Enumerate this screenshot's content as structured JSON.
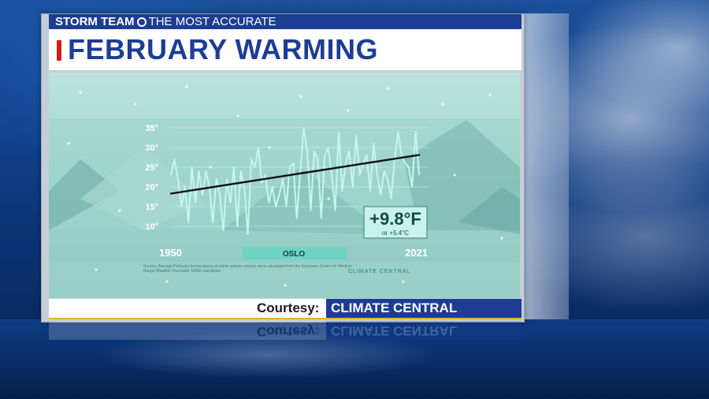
{
  "brand": {
    "station": "STORM TEAM",
    "tagline": "THE MOST ACCURATE"
  },
  "title": "FEBRUARY WARMING",
  "courtesy": {
    "label": "Courtesy:",
    "source": "CLIMATE CENTRAL"
  },
  "colors": {
    "brand_blue": "#1d3d93",
    "title_red": "#d21c1c",
    "accent_gold": "#e8b21f",
    "series_line": "#b9f2e6",
    "trend_line": "#111111",
    "chart_bg": "#8ec8c1"
  },
  "icons": {
    "station_logo": "channel-4-logo-icon",
    "climate_central_logo": "infinity-icon"
  },
  "chart_data": {
    "type": "line",
    "city": "OSLO",
    "start_label": "1950",
    "end_label": "2021",
    "yticks": [
      "35°",
      "30°",
      "25°",
      "20°",
      "15°",
      "10°"
    ],
    "ytick_values": [
      35,
      30,
      25,
      20,
      15,
      10
    ],
    "ylim": [
      7,
      37
    ],
    "xlim": [
      1950,
      2021
    ],
    "grid": true,
    "badge": {
      "main": "+9.8°F",
      "sub": "or +5.4°C"
    },
    "source_note": "Source: Average February temperatures at winter games venues were calculated from the European Centre for Medium Range Weather Forecasts' ERA5 reanalysis.",
    "logo_text": "CLIMATE CENTRAL",
    "series": [
      {
        "x": [
          1950,
          1951,
          1952,
          1953,
          1954,
          1955,
          1956,
          1957,
          1958,
          1959,
          1960,
          1961,
          1962,
          1963,
          1964,
          1965,
          1966,
          1967,
          1968,
          1969,
          1970,
          1971,
          1972,
          1973,
          1974,
          1975,
          1976,
          1977,
          1978,
          1979,
          1980,
          1981,
          1982,
          1983,
          1984,
          1985,
          1986,
          1987,
          1988,
          1989,
          1990,
          1991,
          1992,
          1993,
          1994,
          1995,
          1996,
          1997,
          1998,
          1999,
          2000,
          2001,
          2002,
          2003,
          2004,
          2005,
          2006,
          2007,
          2008,
          2009,
          2010,
          2011,
          2012,
          2013,
          2014,
          2015,
          2016,
          2017,
          2018,
          2019,
          2020,
          2021
        ],
        "y": [
          23,
          27,
          22,
          15,
          20,
          11,
          25,
          16,
          24,
          18,
          24,
          20,
          11,
          22,
          18,
          9,
          22,
          16,
          25,
          10,
          24,
          20,
          8,
          27,
          25,
          30,
          21,
          23,
          16,
          20,
          15,
          18,
          22,
          15,
          25,
          26,
          12,
          24,
          35,
          29,
          14,
          29,
          27,
          12,
          28,
          30,
          23,
          14,
          34,
          19,
          26,
          29,
          20,
          33,
          23,
          26,
          28,
          19,
          31,
          23,
          18,
          24,
          22,
          17,
          27,
          34,
          28,
          26,
          25,
          20,
          34,
          23
        ]
      }
    ],
    "trend": {
      "x": [
        1950,
        2021
      ],
      "y": [
        18.3,
        28.1
      ]
    }
  }
}
